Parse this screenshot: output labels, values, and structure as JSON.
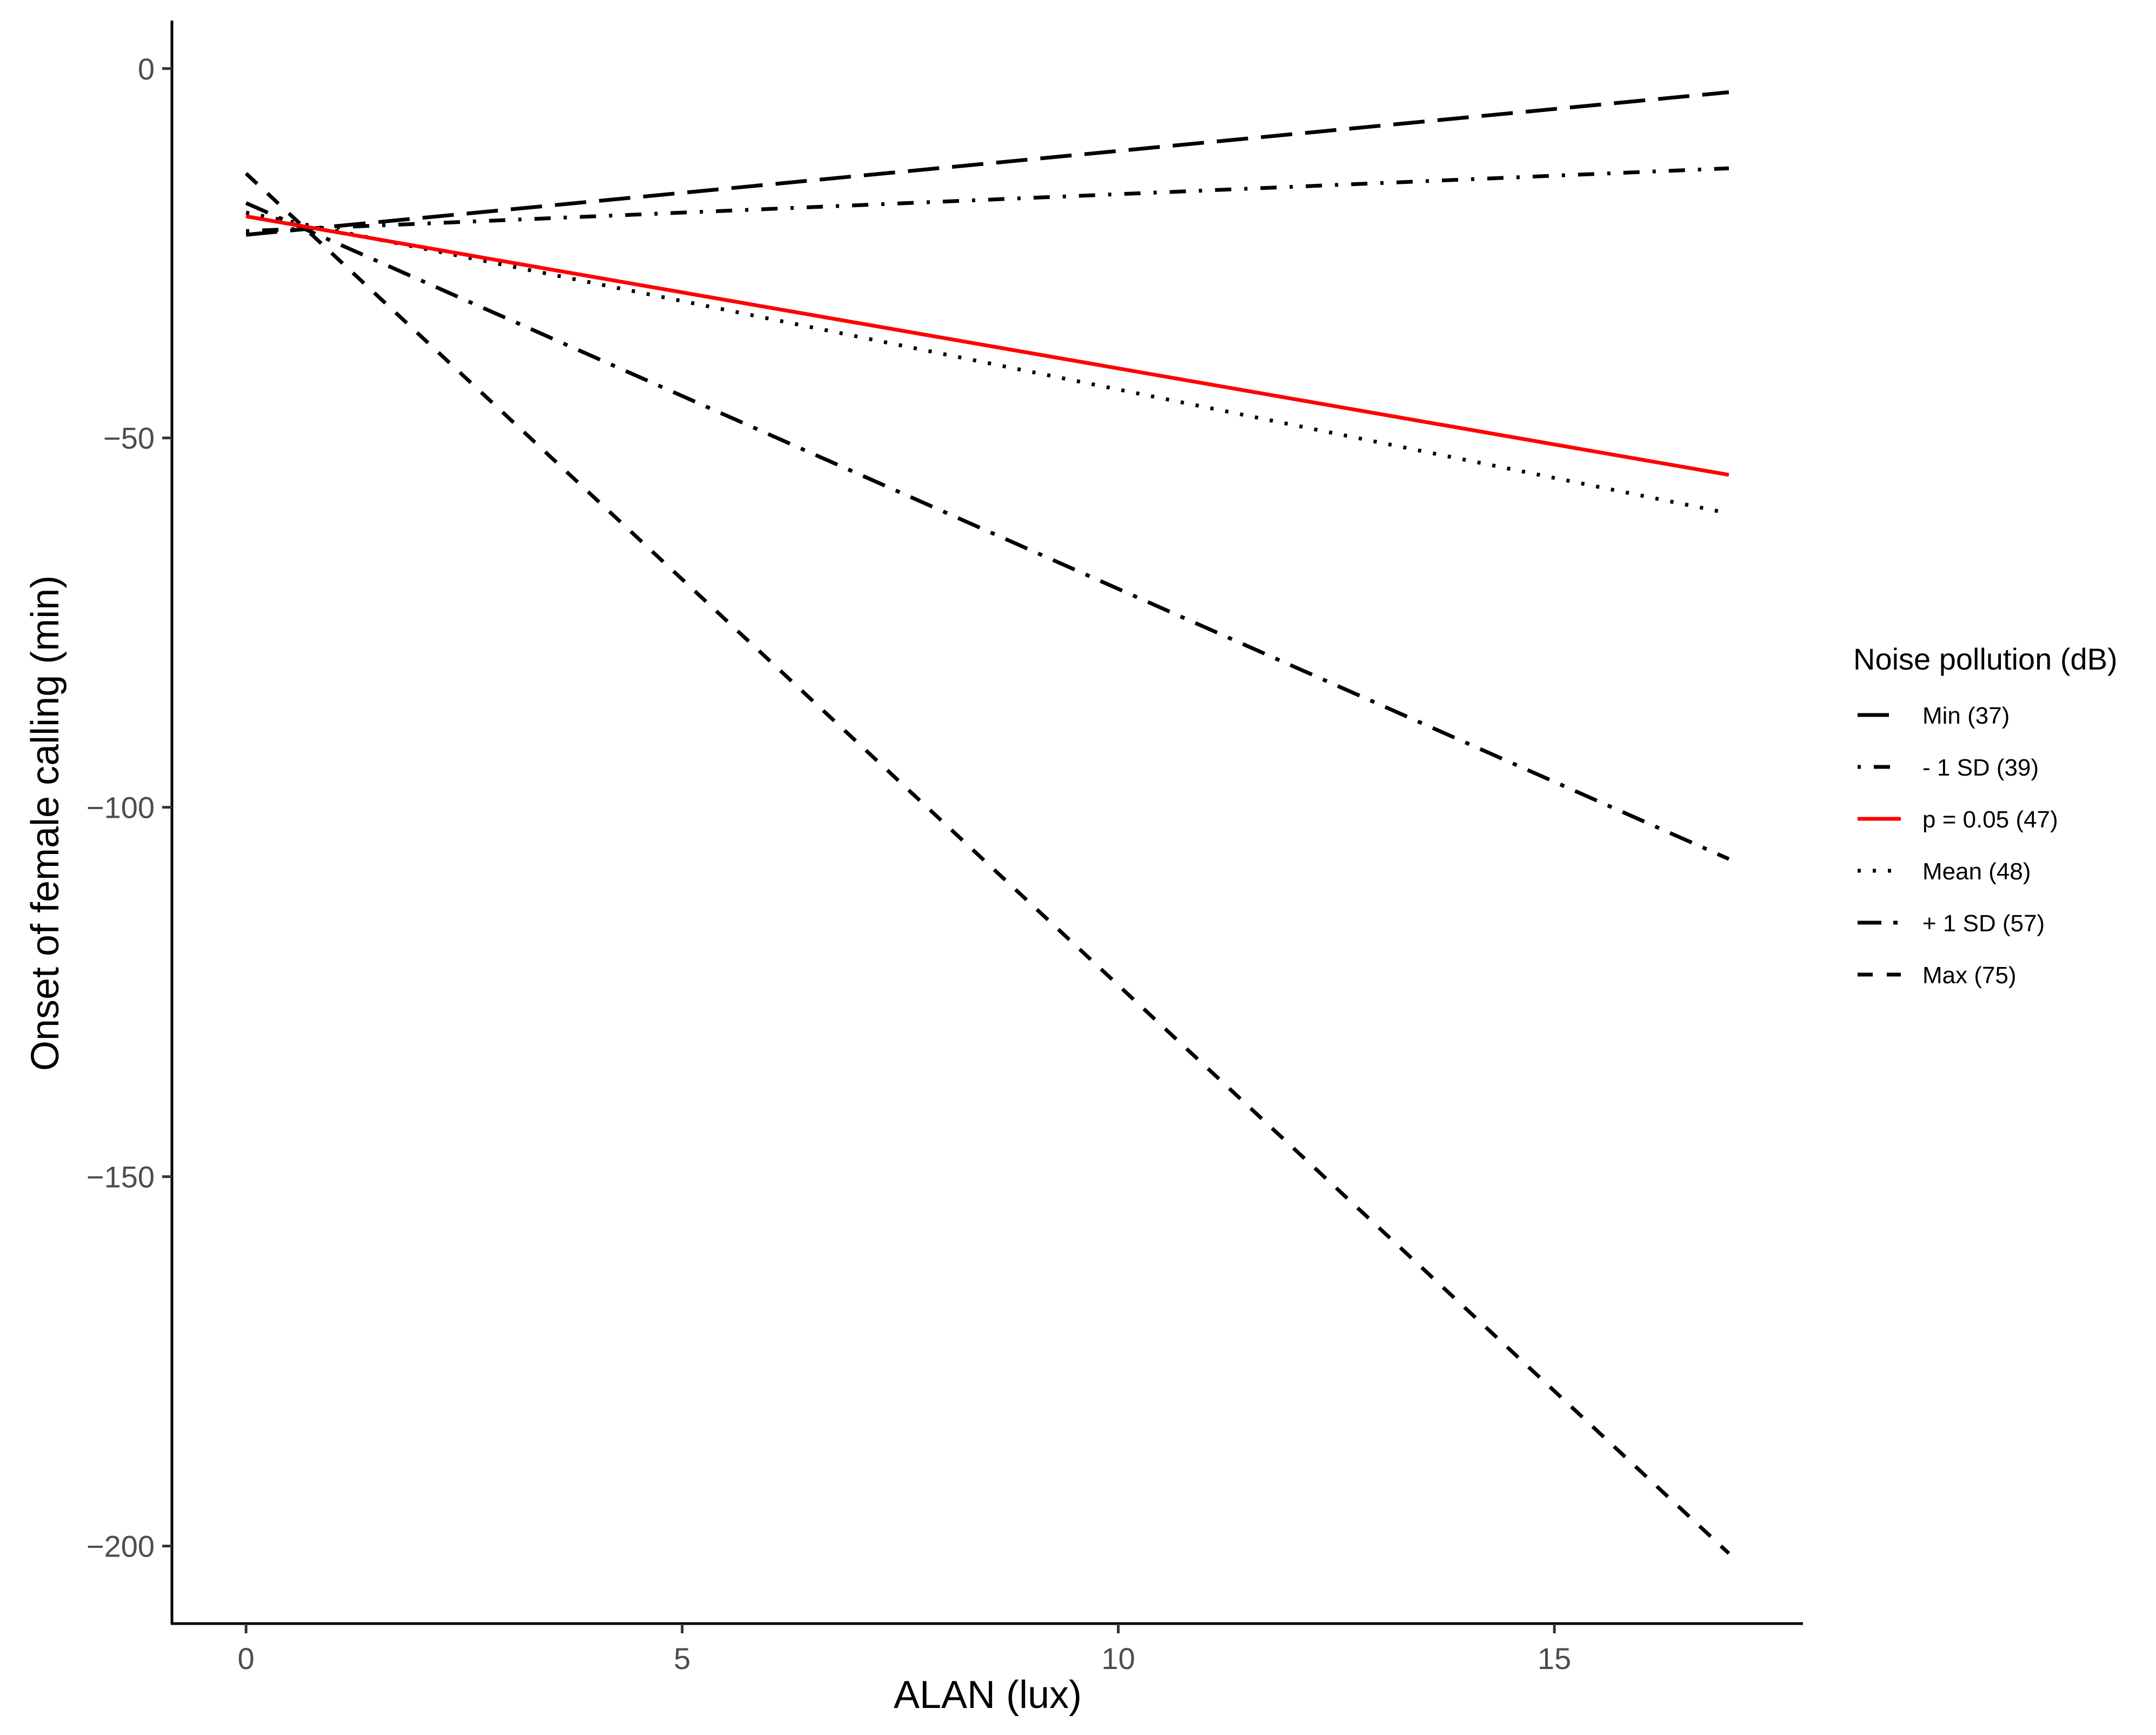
{
  "chart_data": {
    "type": "line",
    "xlabel": "ALAN (lux)",
    "ylabel": "Onset of female calling (min)",
    "xlim": [
      -0.85,
      17.85
    ],
    "ylim": [
      -210.5,
      6.5
    ],
    "xticks": [
      0,
      5,
      10,
      15
    ],
    "yticks": [
      0,
      -50,
      -100,
      -150,
      -200
    ],
    "xtick_labels": [
      "0",
      "5",
      "10",
      "15"
    ],
    "ytick_labels": [
      "0",
      "−50",
      "−100",
      "−150",
      "−200"
    ],
    "grid": false,
    "legend": {
      "title": "Noise pollution (dB)",
      "position": "right"
    },
    "series": [
      {
        "name": "Min (37)",
        "x": [
          0,
          17
        ],
        "y": [
          -22.5,
          -3.2
        ],
        "color": "#000000",
        "linestyle": "longdash"
      },
      {
        "name": "- 1 SD (39)",
        "x": [
          0,
          17
        ],
        "y": [
          -22.0,
          -13.5
        ],
        "color": "#000000",
        "linestyle": "dotdash"
      },
      {
        "name": "p = 0.05 (47)",
        "x": [
          0,
          17
        ],
        "y": [
          -20.0,
          -55.0
        ],
        "color": "#ff0000",
        "linestyle": "solid"
      },
      {
        "name": "Mean (48)",
        "x": [
          0,
          17
        ],
        "y": [
          -19.5,
          -60.2
        ],
        "color": "#000000",
        "linestyle": "dotted"
      },
      {
        "name": "+ 1 SD (57)",
        "x": [
          0,
          17
        ],
        "y": [
          -18.2,
          -107.0
        ],
        "color": "#000000",
        "linestyle": "longdashdot"
      },
      {
        "name": "Max (75)",
        "x": [
          0,
          17
        ],
        "y": [
          -14.2,
          -201.0
        ],
        "color": "#000000",
        "linestyle": "dashed"
      }
    ]
  }
}
